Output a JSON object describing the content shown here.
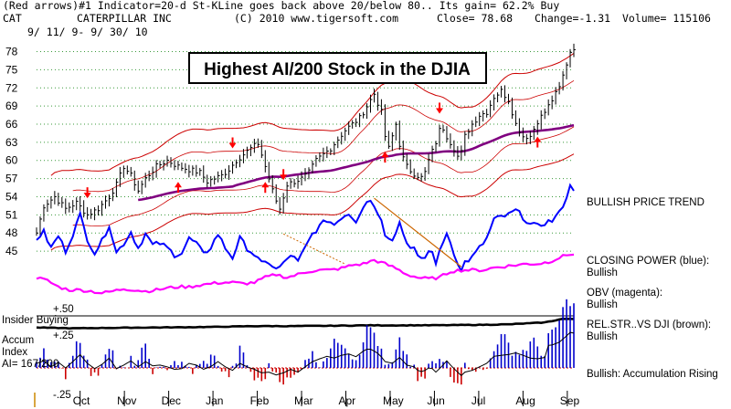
{
  "header": {
    "line1": "(Red arrows)#1 Indicator=20-d St-KLine goes back above 20/below 80..  Its gain= 62.2% Buy",
    "symbol": "CAT",
    "company": "CATERPILLAR INC",
    "copyright": "(C) 2010 www.tigersoft.com",
    "close": "Close=  78.68",
    "change": "Change=-1.31",
    "volume": "Volume= 115106",
    "date_range": "9/ 11/ 9- 9/ 30/ 10"
  },
  "banner": "Highest AI/200 Stock in the DJIA",
  "chart_data": {
    "type": "ohlc",
    "title": "Highest AI/200 Stock in the DJIA",
    "x_labels": [
      "Oct",
      "Nov",
      "Dec",
      "Jan",
      "Feb",
      "Mar",
      "Apr",
      "May",
      "Jun",
      "Jul",
      "Aug",
      "Sep"
    ],
    "y_ticks": [
      45,
      48,
      51,
      54,
      57,
      60,
      63,
      66,
      69,
      72,
      75,
      78
    ],
    "ylim": [
      43.5,
      80.5
    ],
    "price_closes": [
      [
        0,
        48
      ],
      [
        2,
        52.5
      ],
      [
        5,
        54
      ],
      [
        8,
        52
      ],
      [
        11,
        53
      ],
      [
        14,
        51
      ],
      [
        17,
        52
      ],
      [
        20,
        54
      ],
      [
        22,
        56
      ],
      [
        24,
        59
      ],
      [
        26,
        57.5
      ],
      [
        28,
        55
      ],
      [
        30,
        57
      ],
      [
        33,
        59
      ],
      [
        36,
        60
      ],
      [
        39,
        59
      ],
      [
        42,
        58.5
      ],
      [
        45,
        58
      ],
      [
        47,
        56.5
      ],
      [
        49,
        57
      ],
      [
        51,
        57.5
      ],
      [
        53,
        58.5
      ],
      [
        55,
        60
      ],
      [
        57,
        61
      ],
      [
        59,
        62
      ],
      [
        61,
        62.8
      ],
      [
        62.5,
        60
      ],
      [
        64,
        57
      ],
      [
        65.5,
        54
      ],
      [
        67,
        52
      ],
      [
        69,
        56
      ],
      [
        71,
        56.5
      ],
      [
        73,
        57
      ],
      [
        75,
        58
      ],
      [
        77,
        60
      ],
      [
        79,
        61
      ],
      [
        81,
        62
      ],
      [
        83,
        63.5
      ],
      [
        85,
        65
      ],
      [
        87,
        66
      ],
      [
        89,
        67
      ],
      [
        91,
        69
      ],
      [
        93,
        71
      ],
      [
        94,
        69.5
      ],
      [
        95,
        68
      ],
      [
        96,
        64
      ],
      [
        97,
        62
      ],
      [
        99,
        66
      ],
      [
        100.5,
        61
      ],
      [
        102,
        59
      ],
      [
        103.5,
        58
      ],
      [
        105,
        57.5
      ],
      [
        106.5,
        57
      ],
      [
        108,
        60
      ],
      [
        110,
        63
      ],
      [
        111.5,
        66
      ],
      [
        113,
        64
      ],
      [
        115,
        62
      ],
      [
        116.5,
        60
      ],
      [
        118,
        64
      ],
      [
        120,
        66
      ],
      [
        122,
        67.5
      ],
      [
        124,
        68
      ],
      [
        126,
        70.5
      ],
      [
        128,
        71.5
      ],
      [
        130,
        70
      ],
      [
        131,
        68
      ],
      [
        132,
        66
      ],
      [
        134,
        64
      ],
      [
        136,
        64
      ],
      [
        138,
        66.5
      ],
      [
        140,
        68
      ],
      [
        142,
        70
      ],
      [
        144,
        72
      ],
      [
        145.5,
        75
      ],
      [
        147,
        78
      ],
      [
        148,
        78.7
      ]
    ],
    "closing_power": [
      [
        0,
        0.55
      ],
      [
        2,
        0.62
      ],
      [
        4,
        0.45
      ],
      [
        6,
        0.58
      ],
      [
        8,
        0.42
      ],
      [
        10,
        0.6
      ],
      [
        12,
        0.8
      ],
      [
        14,
        0.55
      ],
      [
        16,
        0.4
      ],
      [
        18,
        0.52
      ],
      [
        20,
        0.7
      ],
      [
        22,
        0.4
      ],
      [
        24,
        0.5
      ],
      [
        26,
        0.62
      ],
      [
        28,
        0.45
      ],
      [
        30,
        0.6
      ],
      [
        32,
        0.48
      ],
      [
        34,
        0.5
      ],
      [
        36,
        0.45
      ],
      [
        38,
        0.38
      ],
      [
        40,
        0.4
      ],
      [
        42,
        0.55
      ],
      [
        44,
        0.5
      ],
      [
        46,
        0.38
      ],
      [
        48,
        0.46
      ],
      [
        50,
        0.6
      ],
      [
        52,
        0.45
      ],
      [
        54,
        0.35
      ],
      [
        56,
        0.55
      ],
      [
        58,
        0.45
      ],
      [
        60,
        0.38
      ],
      [
        62,
        0.28
      ],
      [
        64,
        0.3
      ],
      [
        66,
        0.22
      ],
      [
        68,
        0.28
      ],
      [
        70,
        0.38
      ],
      [
        72,
        0.3
      ],
      [
        74,
        0.45
      ],
      [
        76,
        0.6
      ],
      [
        78,
        0.68
      ],
      [
        80,
        0.75
      ],
      [
        82,
        0.7
      ],
      [
        84,
        0.78
      ],
      [
        86,
        0.82
      ],
      [
        88,
        0.74
      ],
      [
        90,
        0.9
      ],
      [
        91.5,
        0.98
      ],
      [
        93,
        0.9
      ],
      [
        94.5,
        0.8
      ],
      [
        96,
        0.6
      ],
      [
        98,
        0.55
      ],
      [
        100,
        0.72
      ],
      [
        102,
        0.5
      ],
      [
        104,
        0.45
      ],
      [
        105.5,
        0.3
      ],
      [
        107,
        0.35
      ],
      [
        108.5,
        0.45
      ],
      [
        110,
        0.3
      ],
      [
        111.5,
        0.45
      ],
      [
        113,
        0.62
      ],
      [
        114.5,
        0.45
      ],
      [
        116,
        0.3
      ],
      [
        117,
        0.2
      ],
      [
        118,
        0.3
      ],
      [
        120,
        0.35
      ],
      [
        122,
        0.45
      ],
      [
        124,
        0.55
      ],
      [
        126,
        0.75
      ],
      [
        128,
        0.78
      ],
      [
        130,
        0.8
      ],
      [
        132,
        0.85
      ],
      [
        134,
        0.78
      ],
      [
        136,
        0.7
      ],
      [
        138,
        0.68
      ],
      [
        140,
        0.72
      ],
      [
        142,
        0.74
      ],
      [
        144,
        0.82
      ],
      [
        146,
        1.0
      ],
      [
        147,
        1.1
      ],
      [
        148,
        1.08
      ]
    ],
    "obv": [
      [
        0,
        0.5
      ],
      [
        3,
        0.45
      ],
      [
        6,
        0.35
      ],
      [
        9,
        0.3
      ],
      [
        12,
        0.3
      ],
      [
        15,
        0.28
      ],
      [
        18,
        0.25
      ],
      [
        21,
        0.28
      ],
      [
        24,
        0.32
      ],
      [
        27,
        0.3
      ],
      [
        30,
        0.28
      ],
      [
        33,
        0.3
      ],
      [
        36,
        0.33
      ],
      [
        39,
        0.35
      ],
      [
        42,
        0.35
      ],
      [
        45,
        0.38
      ],
      [
        48,
        0.4
      ],
      [
        51,
        0.42
      ],
      [
        54,
        0.42
      ],
      [
        57,
        0.4
      ],
      [
        60,
        0.42
      ],
      [
        63,
        0.5
      ],
      [
        66,
        0.55
      ],
      [
        69,
        0.5
      ],
      [
        72,
        0.55
      ],
      [
        75,
        0.6
      ],
      [
        78,
        0.62
      ],
      [
        81,
        0.62
      ],
      [
        84,
        0.65
      ],
      [
        87,
        0.7
      ],
      [
        90,
        0.72
      ],
      [
        93,
        0.78
      ],
      [
        96,
        0.72
      ],
      [
        99,
        0.65
      ],
      [
        102,
        0.55
      ],
      [
        105,
        0.5
      ],
      [
        108,
        0.48
      ],
      [
        111,
        0.5
      ],
      [
        114,
        0.6
      ],
      [
        117,
        0.62
      ],
      [
        120,
        0.62
      ],
      [
        123,
        0.62
      ],
      [
        126,
        0.66
      ],
      [
        129,
        0.68
      ],
      [
        132,
        0.7
      ],
      [
        135,
        0.72
      ],
      [
        138,
        0.72
      ],
      [
        141,
        0.75
      ],
      [
        144,
        0.82
      ],
      [
        147,
        0.88
      ],
      [
        148,
        0.87
      ]
    ],
    "insider_line": [
      [
        0,
        0.2
      ],
      [
        10,
        0.15
      ],
      [
        20,
        0.18
      ],
      [
        30,
        0.2
      ],
      [
        40,
        0.22
      ],
      [
        50,
        0.25
      ],
      [
        60,
        0.3
      ],
      [
        70,
        0.3
      ],
      [
        80,
        0.32
      ],
      [
        90,
        0.35
      ],
      [
        100,
        0.35
      ],
      [
        110,
        0.36
      ],
      [
        120,
        0.38
      ],
      [
        130,
        0.42
      ],
      [
        140,
        0.55
      ],
      [
        145,
        0.8
      ],
      [
        148,
        0.78
      ]
    ],
    "relative_strength": [
      [
        0,
        0.42
      ],
      [
        10,
        0.45
      ],
      [
        20,
        0.48
      ],
      [
        30,
        0.5
      ],
      [
        40,
        0.52
      ],
      [
        50,
        0.53
      ],
      [
        60,
        0.55
      ],
      [
        70,
        0.56
      ],
      [
        80,
        0.57
      ],
      [
        90,
        0.58
      ],
      [
        100,
        0.58
      ],
      [
        110,
        0.59
      ],
      [
        120,
        0.6
      ],
      [
        130,
        0.62
      ],
      [
        140,
        0.66
      ],
      [
        148,
        0.7
      ]
    ],
    "red_arrows_down": [
      14,
      54,
      68,
      111
    ],
    "red_arrows_up": [
      39,
      63,
      96,
      138
    ],
    "annotations": [
      "BULLISH PRICE TREND",
      "CLOSING POWER (blue):",
      "Bullish",
      "OBV (magenta):",
      "Bullish",
      "REL.STR..VS DJI (brown):",
      "Bullish",
      "Bullish: Accumulation Rising"
    ]
  },
  "left_labels": {
    "plus50": "+.50",
    "insider": "Insider Buying",
    "plus25": "+.25",
    "accum1": "Accum",
    "accum2": "Index",
    "ai": "AI= 167/200",
    "minus25": "-.25"
  },
  "indicators": {
    "price_trend": "BULLISH PRICE TREND",
    "cp_label": "CLOSING POWER (blue):",
    "cp_value": "Bullish",
    "obv_label": "OBV (magenta):",
    "obv_value": "Bullish",
    "rs_label": "REL.STR..VS DJI (brown):",
    "rs_value": "Bullish",
    "accum": "Bullish: Accumulation Rising"
  },
  "colors": {
    "price": "#000000",
    "bands": "#cc0000",
    "ma200": "#800080",
    "closing_power": "#0000ff",
    "obv": "#ff00ff",
    "accum_bars": "#0000cc",
    "arrows": "#ff0000"
  }
}
